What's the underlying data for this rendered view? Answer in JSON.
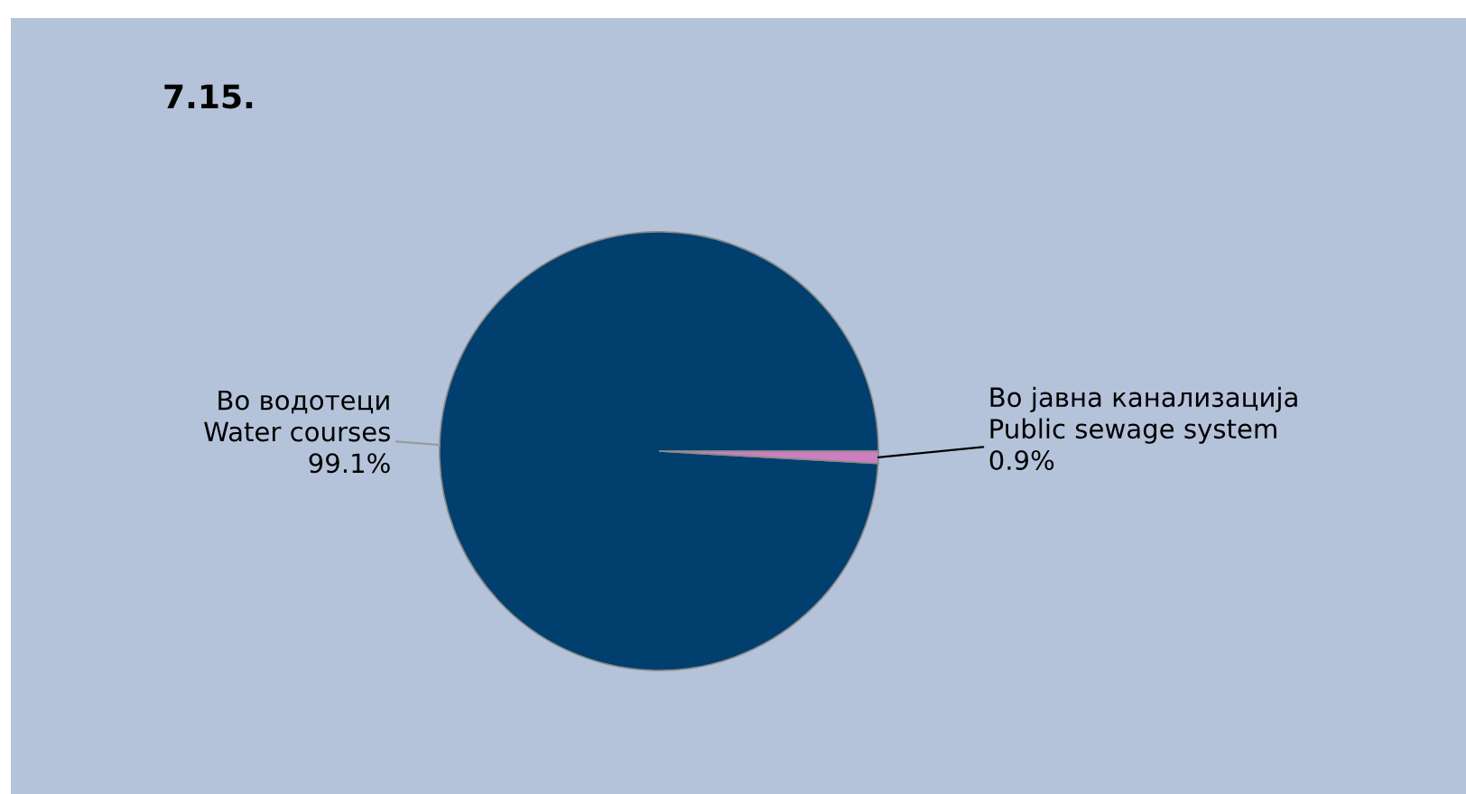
{
  "chart_data": {
    "type": "pie",
    "title": "7.15.",
    "categories": [
      "Во водотеци\nWater courses",
      "Во јавна канализација\nPublic sewage system"
    ],
    "values": [
      99.1,
      0.9
    ],
    "value_labels": [
      "99.1%",
      "0.9%"
    ],
    "colors": [
      "#003f6e",
      "#cc7fbe"
    ],
    "legend": false
  }
}
